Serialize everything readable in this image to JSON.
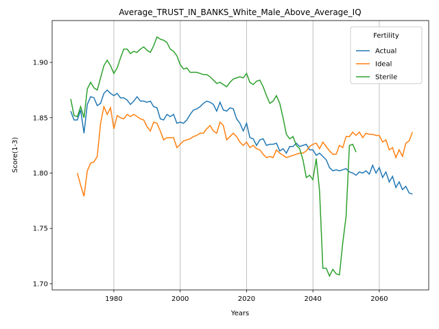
{
  "chart_data": {
    "type": "line",
    "title": "Average_TRUST_IN_BANKS_White_Male_Above_Average_IQ",
    "xlabel": "Years",
    "ylabel": "Score(1-3)",
    "legend_title": "Fertility",
    "legend": "upper right",
    "grid": "x",
    "xlim": [
      1961.4,
      2074.9
    ],
    "ylim": [
      1.6944,
      1.9378
    ],
    "xticks": [
      1980,
      2000,
      2020,
      2040,
      2060
    ],
    "yticks": [
      {
        "value": 1.7,
        "label": "1.70"
      },
      {
        "value": 1.75,
        "label": "1.75"
      },
      {
        "value": 1.8,
        "label": "1.80"
      },
      {
        "value": 1.85,
        "label": "1.85"
      },
      {
        "value": 1.9,
        "label": "1.90"
      }
    ],
    "series": [
      {
        "name": "Actual",
        "color": "#1f77b4",
        "x": [
          1967,
          1968,
          1969,
          1970,
          1971,
          1972,
          1973,
          1974,
          1975,
          1976,
          1977,
          1978,
          1979,
          1980,
          1981,
          1982,
          1983,
          1984,
          1985,
          1986,
          1987,
          1988,
          1989,
          1990,
          1991,
          1992,
          1993,
          1994,
          1995,
          1996,
          1997,
          1998,
          1999,
          2000,
          2001,
          2002,
          2003,
          2004,
          2005,
          2006,
          2007,
          2008,
          2009,
          2010,
          2011,
          2012,
          2013,
          2014,
          2015,
          2016,
          2017,
          2018,
          2019,
          2020,
          2021,
          2022,
          2023,
          2024,
          2025,
          2026,
          2027,
          2028,
          2029,
          2030,
          2031,
          2032,
          2033,
          2034,
          2035,
          2036,
          2037,
          2038,
          2039,
          2040,
          2041,
          2042,
          2043,
          2044,
          2045,
          2046,
          2047,
          2048,
          2049,
          2050,
          2051,
          2052,
          2053,
          2054,
          2055,
          2056,
          2057,
          2058,
          2059,
          2060,
          2061,
          2062,
          2063,
          2064,
          2065,
          2066,
          2067,
          2068,
          2069,
          2070
        ],
        "values": [
          1.856,
          1.848,
          1.848,
          1.857,
          1.836,
          1.862,
          1.869,
          1.868,
          1.861,
          1.863,
          1.872,
          1.875,
          1.872,
          1.87,
          1.872,
          1.868,
          1.868,
          1.866,
          1.862,
          1.865,
          1.869,
          1.865,
          1.865,
          1.864,
          1.865,
          1.86,
          1.859,
          1.849,
          1.848,
          1.853,
          1.851,
          1.853,
          1.845,
          1.846,
          1.845,
          1.848,
          1.853,
          1.857,
          1.858,
          1.86,
          1.863,
          1.865,
          1.864,
          1.862,
          1.856,
          1.864,
          1.857,
          1.856,
          1.859,
          1.858,
          1.849,
          1.845,
          1.838,
          1.845,
          1.832,
          1.831,
          1.825,
          1.83,
          1.831,
          1.825,
          1.826,
          1.826,
          1.827,
          1.82,
          1.822,
          1.818,
          1.824,
          1.824,
          1.827,
          1.824,
          1.825,
          1.826,
          1.821,
          1.821,
          1.816,
          1.818,
          1.815,
          1.812,
          1.805,
          1.802,
          1.803,
          1.802,
          1.803,
          1.804,
          1.801,
          1.8,
          1.798,
          1.801,
          1.8,
          1.802,
          1.799,
          1.807,
          1.8,
          1.805,
          1.796,
          1.801,
          1.792,
          1.797,
          1.787,
          1.792,
          1.785,
          1.788,
          1.782,
          1.781
        ]
      },
      {
        "name": "Ideal",
        "color": "#ff7f0e",
        "x": [
          1969,
          1970,
          1971,
          1972,
          1973,
          1974,
          1975,
          1976,
          1977,
          1978,
          1979,
          1980,
          1981,
          1982,
          1983,
          1984,
          1985,
          1986,
          1987,
          1988,
          1989,
          1990,
          1991,
          1992,
          1993,
          1994,
          1995,
          1996,
          1997,
          1998,
          1999,
          2000,
          2001,
          2002,
          2003,
          2004,
          2005,
          2006,
          2007,
          2008,
          2009,
          2010,
          2011,
          2012,
          2013,
          2014,
          2015,
          2016,
          2017,
          2018,
          2019,
          2020,
          2021,
          2022,
          2023,
          2024,
          2025,
          2026,
          2027,
          2028,
          2029,
          2030,
          2031,
          2032,
          2033,
          2034,
          2035,
          2036,
          2037,
          2038,
          2039,
          2040,
          2041,
          2042,
          2043,
          2044,
          2045,
          2046,
          2047,
          2048,
          2049,
          2050,
          2051,
          2052,
          2053,
          2054,
          2055,
          2056,
          2057,
          2058,
          2059,
          2060,
          2061,
          2062,
          2063,
          2064,
          2065,
          2066,
          2067,
          2068,
          2069,
          2070
        ],
        "values": [
          1.8,
          1.789,
          1.779,
          1.802,
          1.809,
          1.81,
          1.815,
          1.845,
          1.86,
          1.853,
          1.859,
          1.84,
          1.852,
          1.85,
          1.849,
          1.853,
          1.851,
          1.853,
          1.851,
          1.849,
          1.848,
          1.842,
          1.838,
          1.846,
          1.845,
          1.838,
          1.83,
          1.832,
          1.832,
          1.832,
          1.823,
          1.826,
          1.829,
          1.83,
          1.831,
          1.833,
          1.834,
          1.836,
          1.836,
          1.84,
          1.843,
          1.838,
          1.836,
          1.846,
          1.843,
          1.83,
          1.833,
          1.836,
          1.833,
          1.828,
          1.825,
          1.828,
          1.823,
          1.825,
          1.822,
          1.821,
          1.817,
          1.814,
          1.815,
          1.814,
          1.821,
          1.818,
          1.816,
          1.814,
          1.815,
          1.816,
          1.817,
          1.818,
          1.818,
          1.82,
          1.824,
          1.826,
          1.827,
          1.822,
          1.828,
          1.824,
          1.82,
          1.817,
          1.817,
          1.825,
          1.823,
          1.833,
          1.833,
          1.837,
          1.834,
          1.837,
          1.832,
          1.836,
          1.835,
          1.835,
          1.834,
          1.834,
          1.828,
          1.83,
          1.821,
          1.823,
          1.814,
          1.821,
          1.815,
          1.827,
          1.829,
          1.837
        ]
      },
      {
        "name": "Sterile",
        "color": "#2ca02c",
        "x": [
          1967,
          1968,
          1969,
          1970,
          1971,
          1972,
          1973,
          1974,
          1975,
          1976,
          1977,
          1978,
          1979,
          1980,
          1981,
          1982,
          1983,
          1984,
          1985,
          1986,
          1987,
          1988,
          1989,
          1990,
          1991,
          1992,
          1993,
          1994,
          1995,
          1996,
          1997,
          1998,
          1999,
          2000,
          2001,
          2002,
          2003,
          2004,
          2005,
          2006,
          2007,
          2008,
          2009,
          2010,
          2011,
          2012,
          2013,
          2014,
          2015,
          2016,
          2017,
          2018,
          2019,
          2020,
          2021,
          2022,
          2023,
          2024,
          2025,
          2026,
          2027,
          2028,
          2029,
          2030,
          2031,
          2032,
          2033,
          2034,
          2035,
          2036,
          2037,
          2038,
          2039,
          2040,
          2041,
          2042,
          2043,
          2044,
          2045,
          2046,
          2047,
          2048,
          2049,
          2050,
          2051,
          2052,
          2053
        ],
        "values": [
          1.867,
          1.852,
          1.851,
          1.86,
          1.85,
          1.876,
          1.882,
          1.877,
          1.875,
          1.886,
          1.897,
          1.902,
          1.897,
          1.89,
          1.895,
          1.904,
          1.912,
          1.912,
          1.908,
          1.91,
          1.909,
          1.912,
          1.914,
          1.911,
          1.909,
          1.915,
          1.923,
          1.921,
          1.92,
          1.918,
          1.912,
          1.91,
          1.906,
          1.898,
          1.894,
          1.895,
          1.891,
          1.891,
          1.891,
          1.89,
          1.889,
          1.889,
          1.887,
          1.884,
          1.881,
          1.882,
          1.88,
          1.878,
          1.882,
          1.885,
          1.886,
          1.887,
          1.886,
          1.89,
          1.882,
          1.88,
          1.883,
          1.884,
          1.878,
          1.87,
          1.863,
          1.865,
          1.87,
          1.863,
          1.85,
          1.835,
          1.831,
          1.833,
          1.825,
          1.822,
          1.812,
          1.796,
          1.798,
          1.794,
          1.813,
          1.784,
          1.714,
          1.714,
          1.707,
          1.713,
          1.709,
          1.708,
          1.737,
          1.761,
          1.825,
          1.826,
          1.819
        ]
      }
    ]
  }
}
